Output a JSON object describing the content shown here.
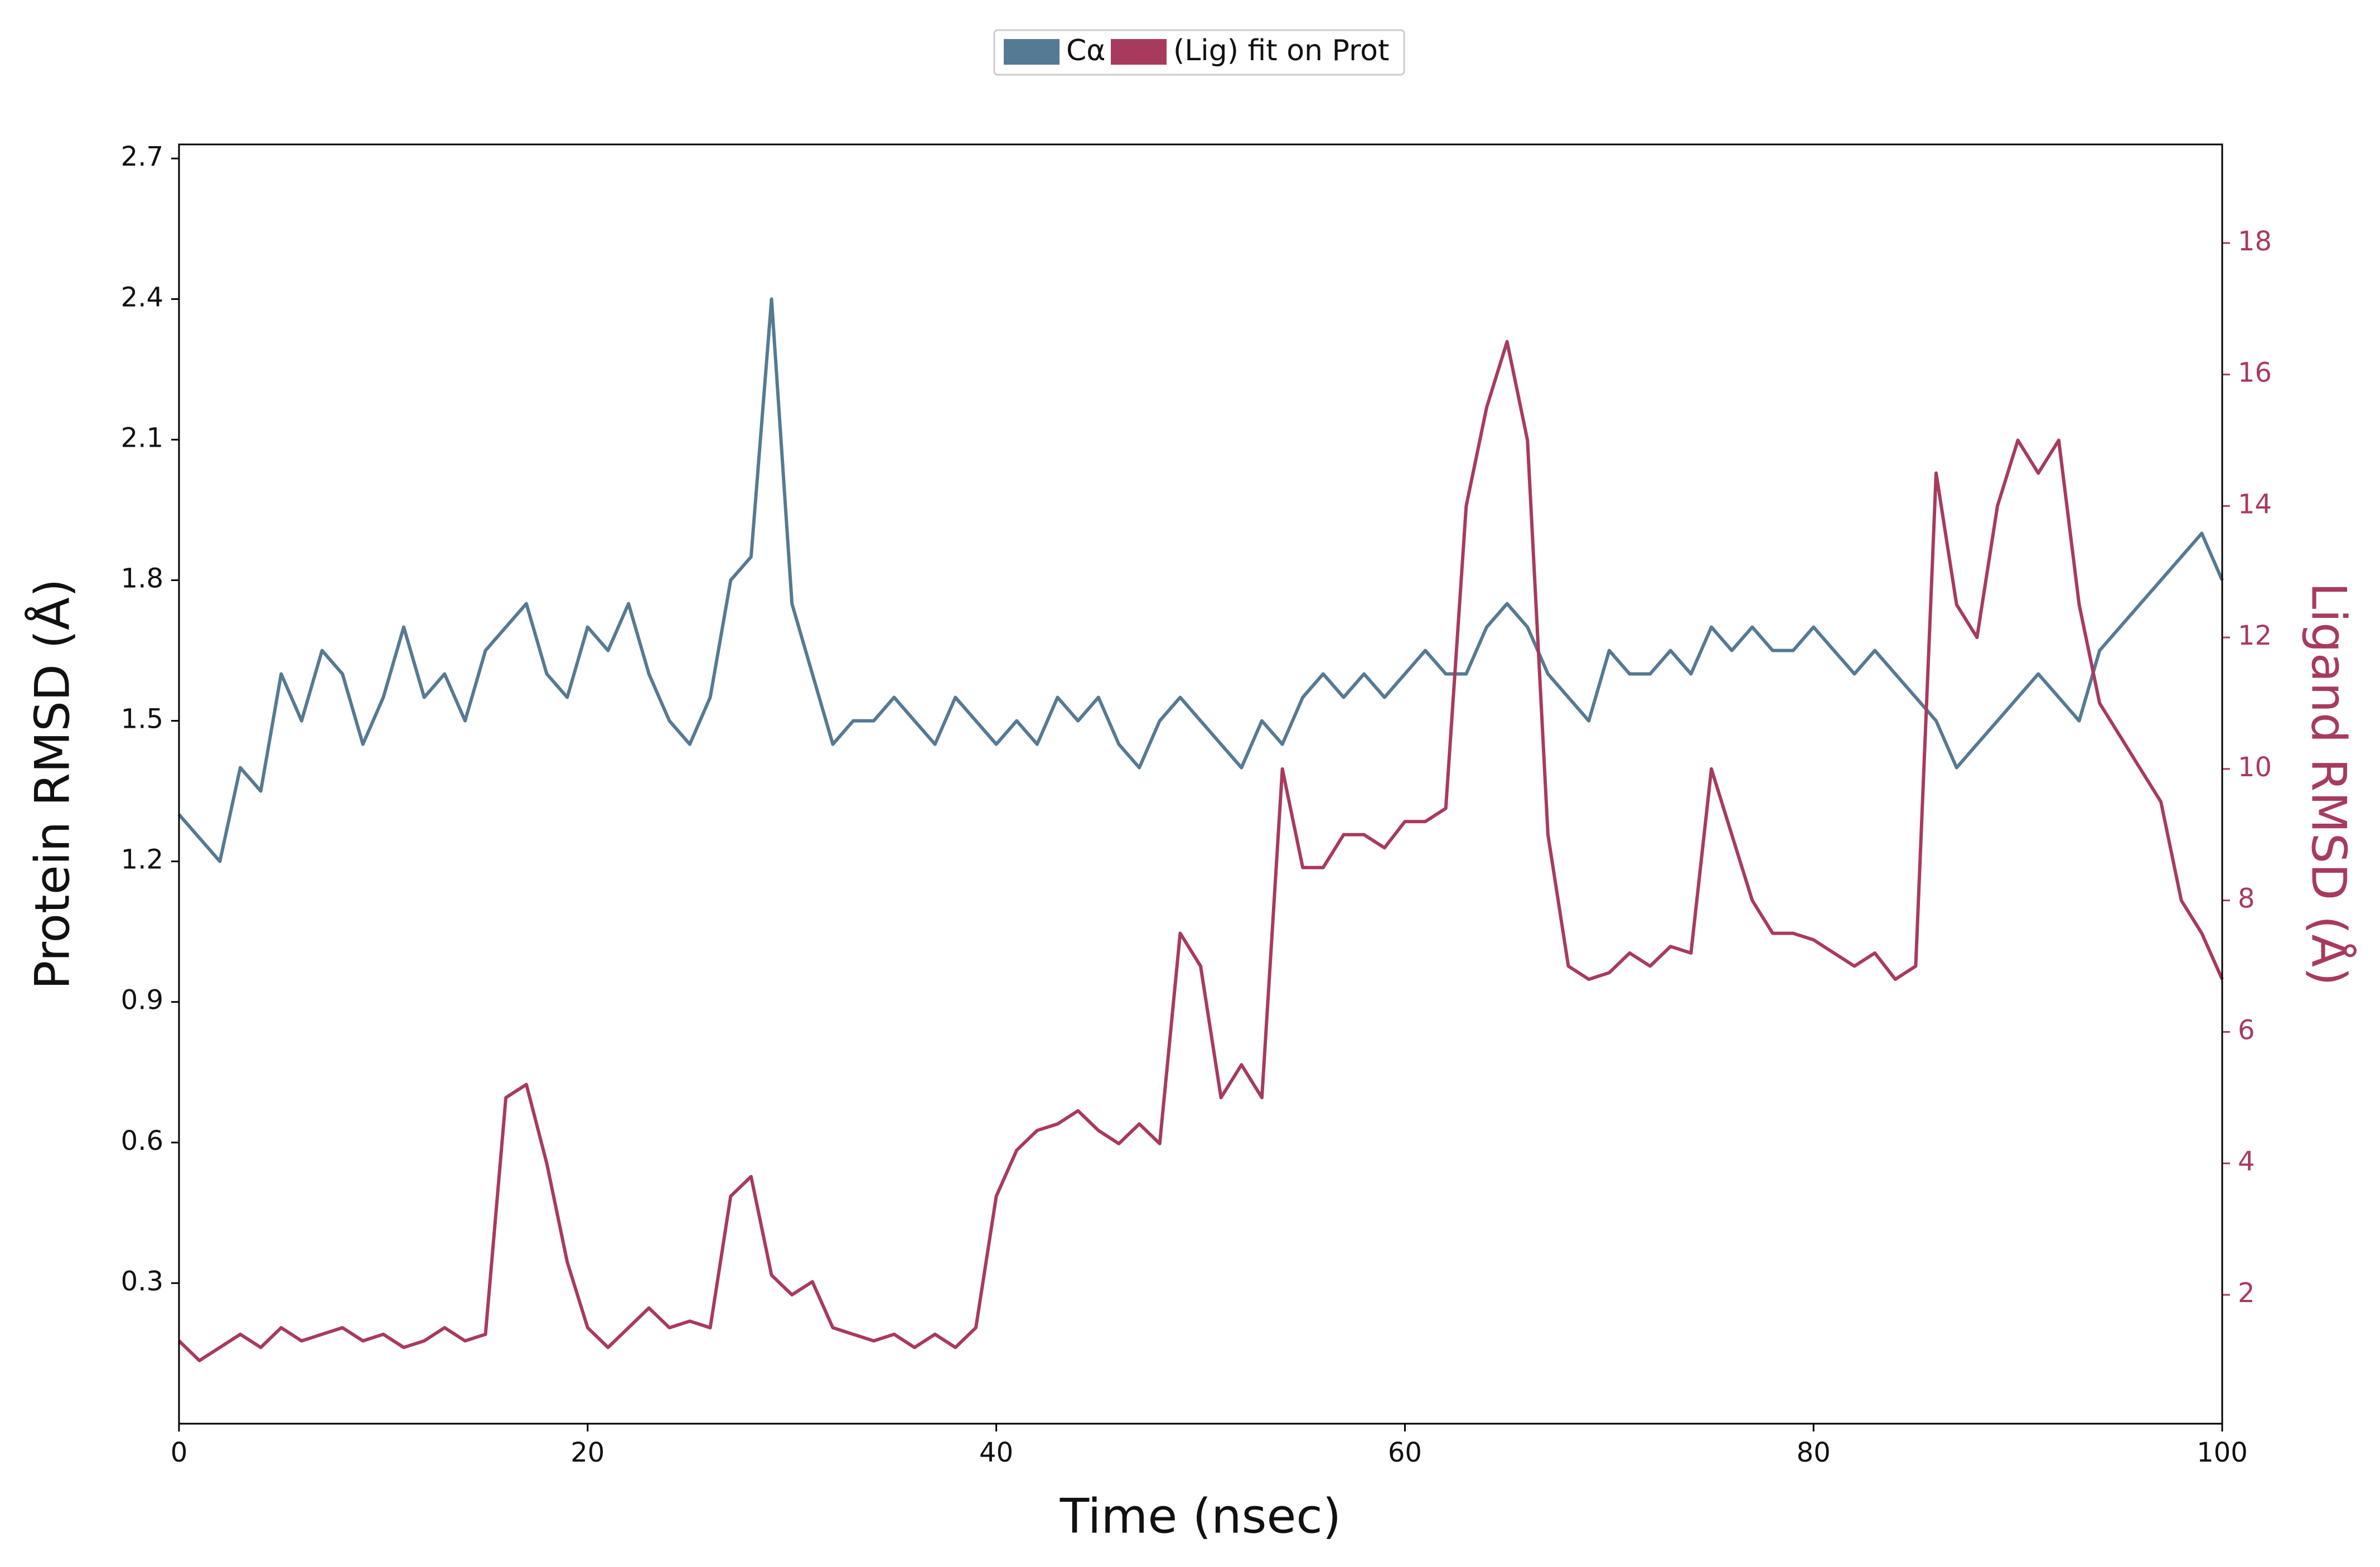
{
  "chart_data": {
    "type": "line",
    "x_label": "Time (nsec)",
    "y_label": "Protein RMSD (Å)",
    "y2_label": "Ligand RMSD (Å)",
    "x": [
      0,
      1,
      2,
      3,
      4,
      5,
      6,
      7,
      8,
      9,
      10,
      11,
      12,
      13,
      14,
      15,
      16,
      17,
      18,
      19,
      20,
      21,
      22,
      23,
      24,
      25,
      26,
      27,
      28,
      29,
      30,
      31,
      32,
      33,
      34,
      35,
      36,
      37,
      38,
      39,
      40,
      41,
      42,
      43,
      44,
      45,
      46,
      47,
      48,
      49,
      50,
      51,
      52,
      53,
      54,
      55,
      56,
      57,
      58,
      59,
      60,
      61,
      62,
      63,
      64,
      65,
      66,
      67,
      68,
      69,
      70,
      71,
      72,
      73,
      74,
      75,
      76,
      77,
      78,
      79,
      80,
      81,
      82,
      83,
      84,
      85,
      86,
      87,
      88,
      89,
      90,
      91,
      92,
      93,
      94,
      95,
      96,
      97,
      98,
      99,
      100
    ],
    "series": [
      {
        "name": "Cα",
        "color": "#557a93",
        "axis": "y",
        "values": [
          1.3,
          1.25,
          1.2,
          1.4,
          1.35,
          1.6,
          1.5,
          1.65,
          1.6,
          1.45,
          1.55,
          1.7,
          1.55,
          1.6,
          1.5,
          1.65,
          1.7,
          1.75,
          1.6,
          1.55,
          1.7,
          1.65,
          1.75,
          1.6,
          1.5,
          1.45,
          1.55,
          1.8,
          1.85,
          2.4,
          1.75,
          1.6,
          1.45,
          1.5,
          1.5,
          1.55,
          1.5,
          1.45,
          1.55,
          1.5,
          1.45,
          1.5,
          1.45,
          1.55,
          1.5,
          1.55,
          1.45,
          1.4,
          1.5,
          1.55,
          1.5,
          1.45,
          1.4,
          1.5,
          1.45,
          1.55,
          1.6,
          1.55,
          1.6,
          1.55,
          1.6,
          1.65,
          1.6,
          1.6,
          1.7,
          1.75,
          1.7,
          1.6,
          1.55,
          1.5,
          1.65,
          1.6,
          1.6,
          1.65,
          1.6,
          1.7,
          1.65,
          1.7,
          1.65,
          1.65,
          1.7,
          1.65,
          1.6,
          1.65,
          1.6,
          1.55,
          1.5,
          1.4,
          1.45,
          1.5,
          1.55,
          1.6,
          1.55,
          1.5,
          1.65,
          1.7,
          1.75,
          1.8,
          1.85,
          1.9,
          1.8
        ]
      },
      {
        "name": "(Lig) fit on Prot",
        "color": "#a83a5e",
        "axis": "y2",
        "values": [
          1.3,
          1.0,
          1.2,
          1.4,
          1.2,
          1.5,
          1.3,
          1.4,
          1.5,
          1.3,
          1.4,
          1.2,
          1.3,
          1.5,
          1.3,
          1.4,
          5.0,
          5.2,
          4.0,
          2.5,
          1.5,
          1.2,
          1.5,
          1.8,
          1.5,
          1.6,
          1.5,
          3.5,
          3.8,
          2.3,
          2.0,
          2.2,
          1.5,
          1.4,
          1.3,
          1.4,
          1.2,
          1.4,
          1.2,
          1.5,
          3.5,
          4.2,
          4.5,
          4.6,
          4.8,
          4.5,
          4.3,
          4.6,
          4.3,
          7.5,
          7.0,
          5.0,
          5.5,
          5.0,
          10.0,
          8.5,
          8.5,
          9.0,
          9.0,
          8.8,
          9.2,
          9.2,
          9.4,
          14.0,
          15.5,
          16.5,
          15.0,
          9.0,
          7.0,
          6.8,
          6.9,
          7.2,
          7.0,
          7.3,
          7.2,
          10.0,
          9.0,
          8.0,
          7.5,
          7.5,
          7.4,
          7.2,
          7.0,
          7.2,
          6.8,
          7.0,
          14.5,
          12.5,
          12.0,
          14.0,
          15.0,
          14.5,
          15.0,
          12.5,
          11.0,
          10.5,
          10.0,
          9.5,
          8.0,
          7.5,
          6.8
        ]
      }
    ],
    "xlim": [
      0,
      100
    ],
    "xticks": [
      0,
      20,
      40,
      60,
      80,
      100
    ],
    "ylim": [
      0.0,
      2.73
    ],
    "yticks": [
      0.3,
      0.6,
      0.9,
      1.2,
      1.5,
      1.8,
      2.1,
      2.4,
      2.7
    ],
    "y2lim": [
      0.04,
      19.5
    ],
    "y2ticks": [
      2,
      4,
      6,
      8,
      10,
      12,
      14,
      16,
      18
    ],
    "y2_tick_color": "#a83a5e",
    "legend": "top"
  }
}
